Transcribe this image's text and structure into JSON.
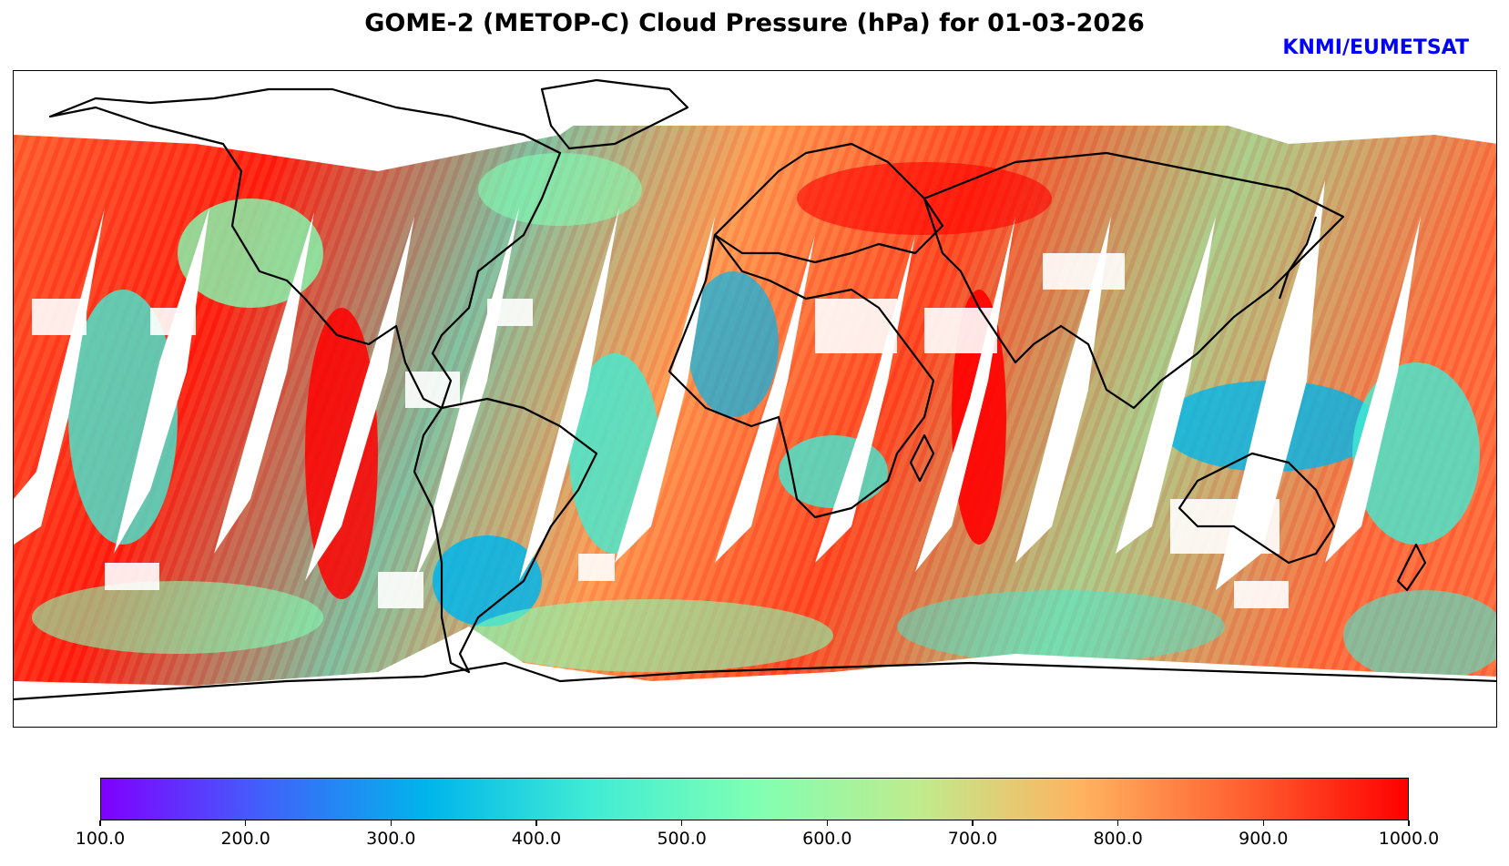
{
  "title": "GOME-2 (METOP-C) Cloud Pressure (hPa) for 01-03-2026",
  "credit": "KNMI/EUMETSAT",
  "credit_color": "#0000ff",
  "map": {
    "projection": "equirectangular",
    "variable": "Cloud Pressure",
    "units": "hPa",
    "gap_color": "#ffffff",
    "coastline_color": "#000000"
  },
  "colorbar": {
    "min": 100.0,
    "max": 1000.0,
    "colormap": "rainbow",
    "stops": [
      "#8000ff",
      "#4062fa",
      "#00b5eb",
      "#40ecd4",
      "#80ffb4",
      "#c0eb8d",
      "#ffb360",
      "#ff6030",
      "#ff0000"
    ],
    "ticks": [
      "100.0",
      "200.0",
      "300.0",
      "400.0",
      "500.0",
      "600.0",
      "700.0",
      "800.0",
      "900.0",
      "1000.0"
    ]
  }
}
